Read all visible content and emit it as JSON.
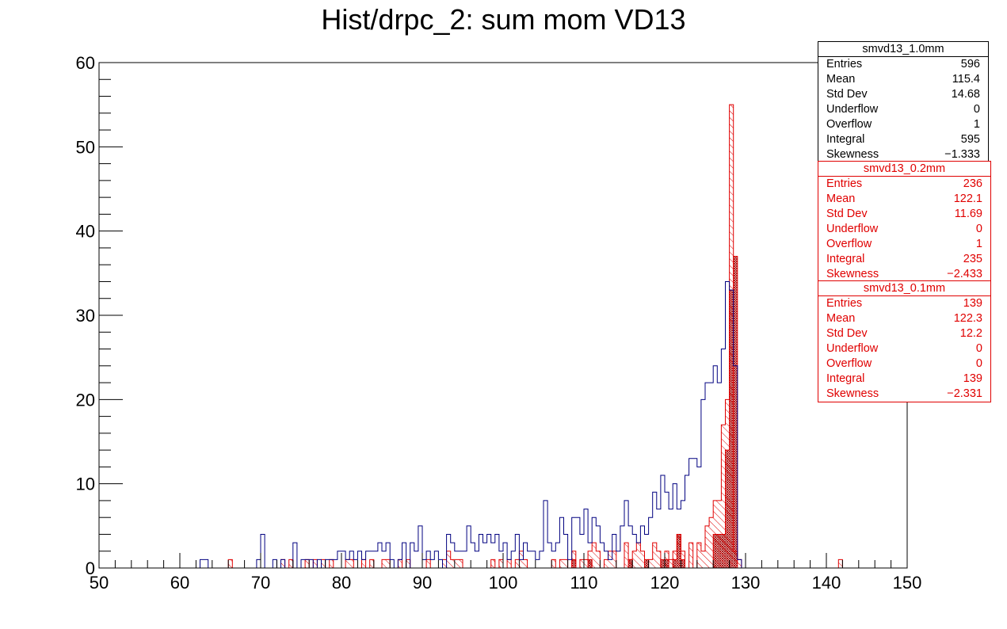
{
  "title": "Hist/drpc_2: sum mom VD13",
  "colors": {
    "series1": "#000080",
    "series2": "#e00000",
    "series3": "#a00000"
  },
  "chart_data": {
    "type": "histogram",
    "title": "Hist/drpc_2: sum mom VD13",
    "xlim": [
      50,
      150
    ],
    "ylim": [
      0,
      60
    ],
    "bin_width": 0.5,
    "x_ticks": [
      "50",
      "60",
      "70",
      "80",
      "90",
      "100",
      "110",
      "120",
      "130",
      "140",
      "150"
    ],
    "y_ticks": [
      "0",
      "10",
      "20",
      "30",
      "40",
      "50",
      "60"
    ],
    "series": [
      {
        "name": "smvd13_1.0mm",
        "style": "line",
        "bins": [
          [
            62.5,
            1
          ],
          [
            63,
            1
          ],
          [
            69.5,
            1
          ],
          [
            70,
            4
          ],
          [
            71.5,
            1
          ],
          [
            72.5,
            1
          ],
          [
            74,
            3
          ],
          [
            75,
            1
          ],
          [
            75.5,
            1
          ],
          [
            76,
            1
          ],
          [
            77,
            1
          ],
          [
            78,
            1
          ],
          [
            78.5,
            1
          ],
          [
            79,
            1
          ],
          [
            79.5,
            2
          ],
          [
            80,
            2
          ],
          [
            80.5,
            1
          ],
          [
            81,
            2
          ],
          [
            81.5,
            1
          ],
          [
            82,
            2
          ],
          [
            82.5,
            1
          ],
          [
            83,
            2
          ],
          [
            83.5,
            2
          ],
          [
            84,
            2
          ],
          [
            84.5,
            3
          ],
          [
            85,
            2
          ],
          [
            85.5,
            3
          ],
          [
            86,
            1
          ],
          [
            87,
            1
          ],
          [
            87.5,
            3
          ],
          [
            88.5,
            3
          ],
          [
            89,
            2
          ],
          [
            89.5,
            5
          ],
          [
            90,
            1
          ],
          [
            90.5,
            2
          ],
          [
            91,
            1
          ],
          [
            91.5,
            2
          ],
          [
            92,
            1
          ],
          [
            93,
            4
          ],
          [
            93.5,
            3
          ],
          [
            94,
            2
          ],
          [
            94.5,
            2
          ],
          [
            95,
            2
          ],
          [
            95.5,
            5
          ],
          [
            96,
            3
          ],
          [
            96.5,
            2
          ],
          [
            97,
            4
          ],
          [
            97.5,
            3
          ],
          [
            98,
            4
          ],
          [
            98.5,
            3
          ],
          [
            99,
            4
          ],
          [
            99.5,
            2
          ],
          [
            100,
            3
          ],
          [
            100.5,
            1
          ],
          [
            101,
            2
          ],
          [
            101.5,
            4
          ],
          [
            102,
            1
          ],
          [
            102.5,
            3
          ],
          [
            103,
            2
          ],
          [
            103.5,
            2
          ],
          [
            104,
            1
          ],
          [
            104.5,
            2
          ],
          [
            105,
            8
          ],
          [
            105.5,
            3
          ],
          [
            106,
            2
          ],
          [
            106.5,
            3
          ],
          [
            107,
            6
          ],
          [
            107.5,
            4
          ],
          [
            108,
            1
          ],
          [
            108.5,
            6
          ],
          [
            109,
            6
          ],
          [
            109.5,
            4
          ],
          [
            110,
            7
          ],
          [
            110.5,
            3
          ],
          [
            111,
            6
          ],
          [
            111.5,
            5
          ],
          [
            112,
            3
          ],
          [
            112.5,
            2
          ],
          [
            113,
            1
          ],
          [
            113.5,
            4
          ],
          [
            114,
            2
          ],
          [
            114.5,
            5
          ],
          [
            115,
            8
          ],
          [
            115.5,
            5
          ],
          [
            116,
            4
          ],
          [
            116.5,
            3
          ],
          [
            117,
            5
          ],
          [
            117.5,
            4
          ],
          [
            118,
            6
          ],
          [
            118.5,
            9
          ],
          [
            119,
            7
          ],
          [
            119.5,
            11
          ],
          [
            120,
            9
          ],
          [
            120.5,
            7
          ],
          [
            121,
            10
          ],
          [
            121.5,
            7
          ],
          [
            122,
            8
          ],
          [
            122.5,
            11
          ],
          [
            123,
            13
          ],
          [
            123.5,
            13
          ],
          [
            124,
            12
          ],
          [
            124.5,
            20
          ],
          [
            125,
            22
          ],
          [
            125.5,
            22
          ],
          [
            126,
            24
          ],
          [
            126.5,
            22
          ],
          [
            127,
            26
          ],
          [
            127.5,
            34
          ],
          [
            128,
            33
          ],
          [
            128.5,
            24
          ],
          [
            129,
            1
          ]
        ]
      },
      {
        "name": "smvd13_0.2mm",
        "style": "hatch",
        "bins": [
          [
            66,
            1
          ],
          [
            72.5,
            1
          ],
          [
            73.5,
            1
          ],
          [
            75.5,
            1
          ],
          [
            76.5,
            1
          ],
          [
            77.5,
            1
          ],
          [
            78.5,
            1
          ],
          [
            80.5,
            1
          ],
          [
            81,
            1
          ],
          [
            82.5,
            1
          ],
          [
            83.5,
            1
          ],
          [
            85,
            1
          ],
          [
            85.5,
            1
          ],
          [
            87,
            1
          ],
          [
            88,
            1
          ],
          [
            90.5,
            1
          ],
          [
            92.5,
            1
          ],
          [
            93,
            2
          ],
          [
            93.5,
            1
          ],
          [
            94,
            1
          ],
          [
            94.5,
            1
          ],
          [
            98.5,
            1
          ],
          [
            99.5,
            1
          ],
          [
            100.5,
            1
          ],
          [
            101.5,
            1
          ],
          [
            102,
            2
          ],
          [
            102.5,
            1
          ],
          [
            106,
            1
          ],
          [
            107,
            1
          ],
          [
            107.5,
            1
          ],
          [
            108.5,
            2
          ],
          [
            109.5,
            1
          ],
          [
            110,
            1
          ],
          [
            110.5,
            2
          ],
          [
            111,
            3
          ],
          [
            111.5,
            2
          ],
          [
            112.5,
            1
          ],
          [
            113,
            2
          ],
          [
            113.5,
            2
          ],
          [
            115,
            3
          ],
          [
            115.5,
            1
          ],
          [
            116,
            2
          ],
          [
            116.5,
            3
          ],
          [
            117,
            2
          ],
          [
            118,
            1
          ],
          [
            118.5,
            3
          ],
          [
            119,
            2
          ],
          [
            120,
            2
          ],
          [
            120.5,
            1
          ],
          [
            121,
            2
          ],
          [
            121.5,
            4
          ],
          [
            122,
            2
          ],
          [
            123,
            3
          ],
          [
            124,
            3
          ],
          [
            124.5,
            2
          ],
          [
            125,
            5
          ],
          [
            125.5,
            6
          ],
          [
            126,
            8
          ],
          [
            126.5,
            8
          ],
          [
            127,
            17
          ],
          [
            127.5,
            20
          ],
          [
            128,
            55
          ],
          [
            128.5,
            2
          ],
          [
            129,
            1
          ],
          [
            141.5,
            1
          ]
        ]
      },
      {
        "name": "smvd13_0.1mm",
        "style": "crosshatch",
        "bins": [
          [
            108.5,
            1
          ],
          [
            110.5,
            1
          ],
          [
            115.5,
            1
          ],
          [
            117.5,
            1
          ],
          [
            119.5,
            1
          ],
          [
            120,
            1
          ],
          [
            121,
            1
          ],
          [
            121.5,
            4
          ],
          [
            122,
            1
          ],
          [
            126,
            4
          ],
          [
            126.5,
            4
          ],
          [
            127,
            4
          ],
          [
            127.5,
            14
          ],
          [
            128,
            33
          ],
          [
            128.5,
            37
          ]
        ]
      }
    ]
  },
  "stats": [
    {
      "name": "smvd13_1.0mm",
      "rows": [
        [
          "Entries",
          "596"
        ],
        [
          "Mean",
          "115.4"
        ],
        [
          "Std Dev",
          "14.68"
        ],
        [
          "Underflow",
          "0"
        ],
        [
          "Overflow",
          "1"
        ],
        [
          "Integral",
          "595"
        ],
        [
          "Skewness",
          "−1.333"
        ]
      ]
    },
    {
      "name": "smvd13_0.2mm",
      "rows": [
        [
          "Entries",
          "236"
        ],
        [
          "Mean",
          "122.1"
        ],
        [
          "Std Dev",
          "11.69"
        ],
        [
          "Underflow",
          "0"
        ],
        [
          "Overflow",
          "1"
        ],
        [
          "Integral",
          "235"
        ],
        [
          "Skewness",
          "−2.433"
        ]
      ]
    },
    {
      "name": "smvd13_0.1mm",
      "rows": [
        [
          "Entries",
          "139"
        ],
        [
          "Mean",
          "122.3"
        ],
        [
          "Std Dev",
          "12.2"
        ],
        [
          "Underflow",
          "0"
        ],
        [
          "Overflow",
          "0"
        ],
        [
          "Integral",
          "139"
        ],
        [
          "Skewness",
          "−2.331"
        ]
      ]
    }
  ]
}
